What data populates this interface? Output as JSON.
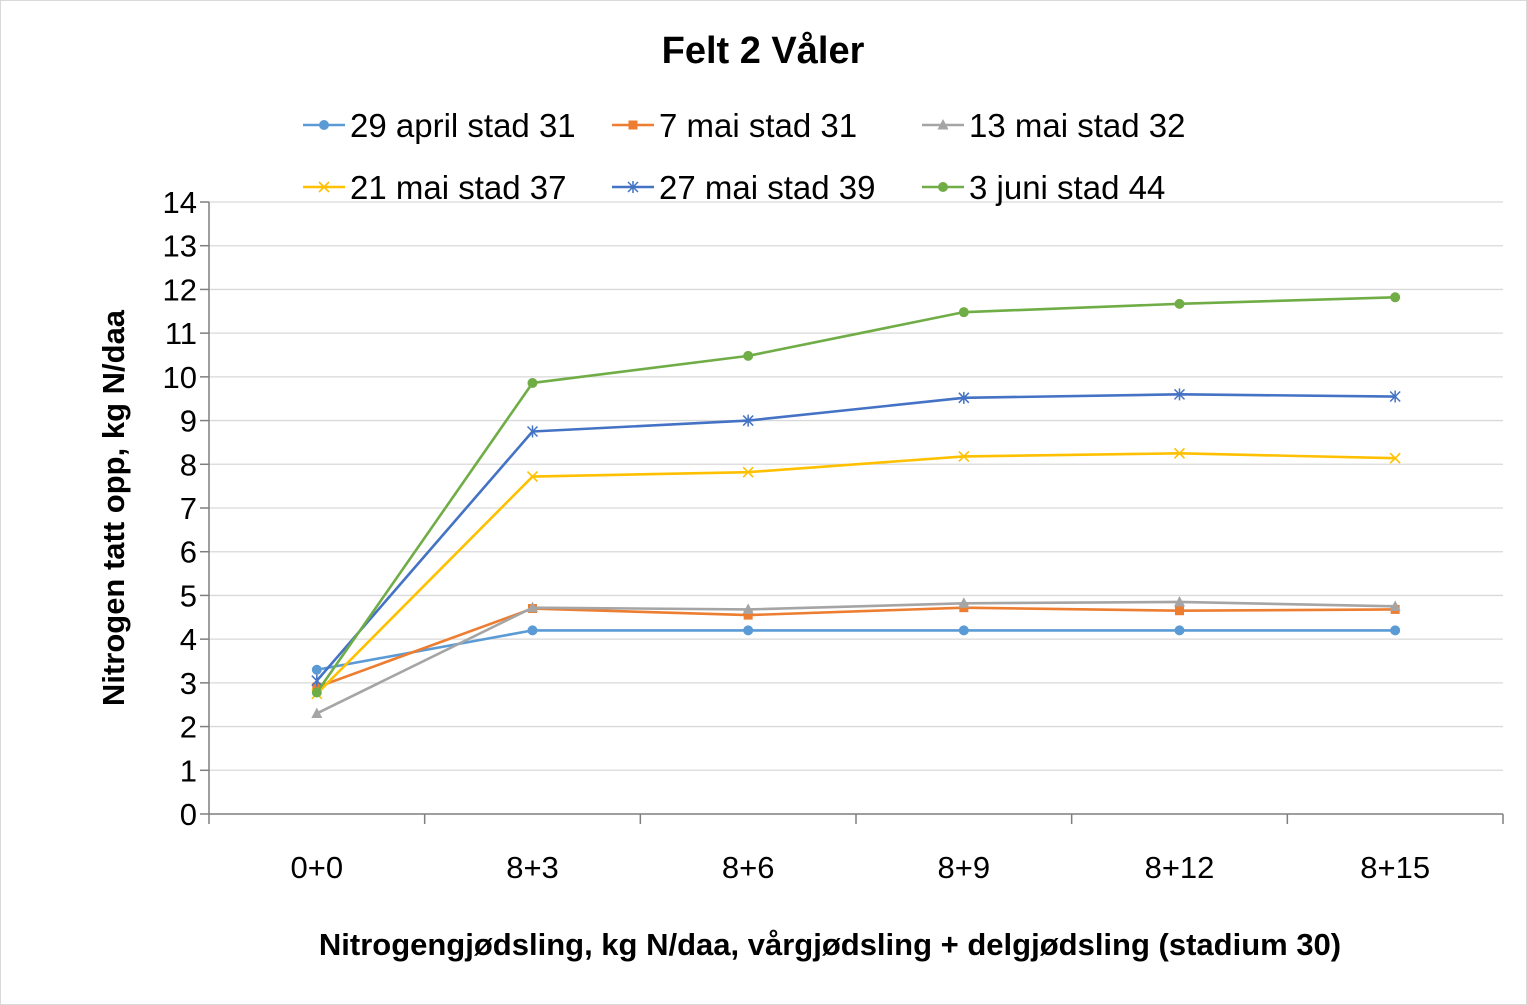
{
  "chart_data": {
    "type": "line",
    "title": "Felt 2 Våler",
    "xlabel": "Nitrogengjødsling, kg N/daa, vårgjødsling + delgjødsling (stadium 30)",
    "ylabel": "Nitrogen tatt opp, kg N/daa",
    "categories": [
      "0+0",
      "8+3",
      "8+6",
      "8+9",
      "8+12",
      "8+15"
    ],
    "ylim": [
      0,
      14
    ],
    "yticks": [
      0,
      1,
      2,
      3,
      4,
      5,
      6,
      7,
      8,
      9,
      10,
      11,
      12,
      13,
      14
    ],
    "grid": "horizontal",
    "legend_position": "top",
    "series": [
      {
        "name": "29 april stad 31",
        "color": "#5b9bd5",
        "marker": "circle",
        "values": [
          3.3,
          4.2,
          4.2,
          4.2,
          4.2,
          4.2
        ]
      },
      {
        "name": "7 mai stad 31",
        "color": "#ed7d31",
        "marker": "square",
        "values": [
          2.9,
          4.7,
          4.55,
          4.72,
          4.65,
          4.68
        ]
      },
      {
        "name": "13 mai stad 32",
        "color": "#a5a5a5",
        "marker": "triangle",
        "values": [
          2.3,
          4.72,
          4.68,
          4.82,
          4.85,
          4.75
        ]
      },
      {
        "name": "21 mai stad 37",
        "color": "#ffc000",
        "marker": "x",
        "values": [
          2.75,
          7.72,
          7.82,
          8.18,
          8.25,
          8.14
        ]
      },
      {
        "name": "27 mai stad 39",
        "color": "#4472c4",
        "marker": "star",
        "values": [
          3.05,
          8.75,
          9.0,
          9.52,
          9.6,
          9.55
        ]
      },
      {
        "name": "3 juni stad 44",
        "color": "#70ad47",
        "marker": "circle",
        "values": [
          2.78,
          9.86,
          10.48,
          11.48,
          11.67,
          11.82
        ]
      }
    ]
  }
}
